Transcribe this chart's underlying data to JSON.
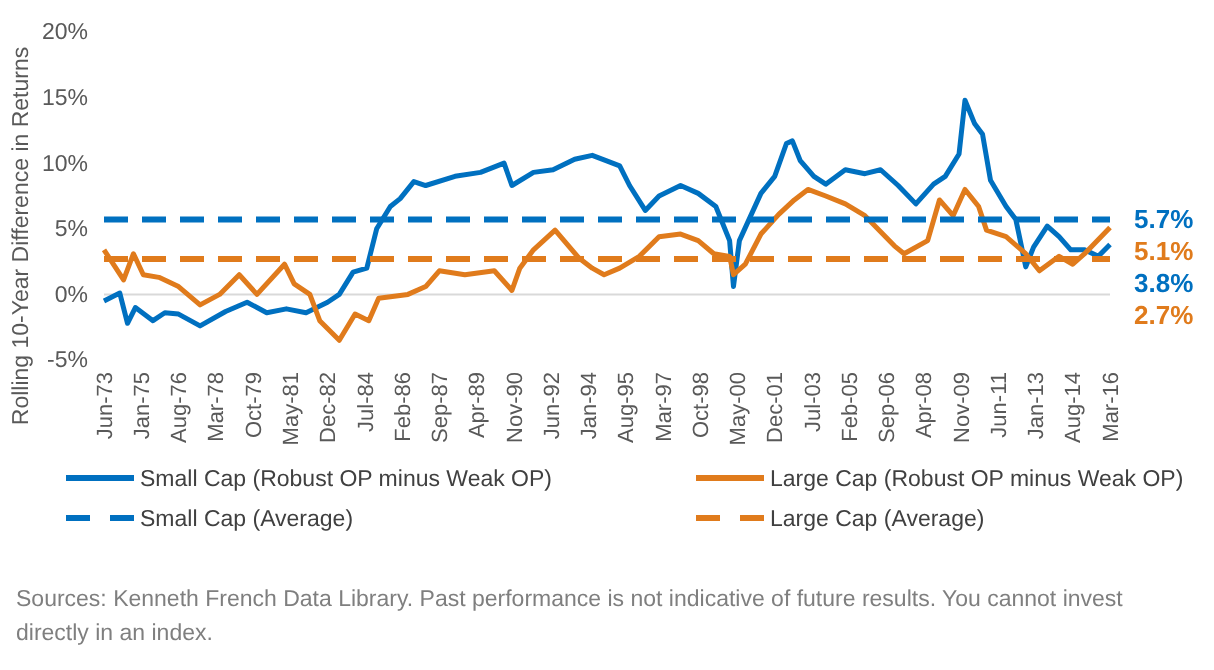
{
  "chart_data": {
    "type": "line",
    "ylabel": "Rolling 10-Year Difference in Returns",
    "xlim": [
      "1973-06",
      "2016-03"
    ],
    "xticks": [
      {
        "value": "1973-06",
        "label": "Jun-73"
      },
      {
        "value": "1975-01",
        "label": "Jan-75"
      },
      {
        "value": "1976-08",
        "label": "Aug-76"
      },
      {
        "value": "1978-03",
        "label": "Mar-78"
      },
      {
        "value": "1979-10",
        "label": "Oct-79"
      },
      {
        "value": "1981-05",
        "label": "May-81"
      },
      {
        "value": "1982-12",
        "label": "Dec-82"
      },
      {
        "value": "1984-07",
        "label": "Jul-84"
      },
      {
        "value": "1986-02",
        "label": "Feb-86"
      },
      {
        "value": "1987-09",
        "label": "Sep-87"
      },
      {
        "value": "1989-04",
        "label": "Apr-89"
      },
      {
        "value": "1990-11",
        "label": "Nov-90"
      },
      {
        "value": "1992-06",
        "label": "Jun-92"
      },
      {
        "value": "1994-01",
        "label": "Jan-94"
      },
      {
        "value": "1995-08",
        "label": "Aug-95"
      },
      {
        "value": "1997-03",
        "label": "Mar-97"
      },
      {
        "value": "1998-10",
        "label": "Oct-98"
      },
      {
        "value": "2000-05",
        "label": "May-00"
      },
      {
        "value": "2001-12",
        "label": "Dec-01"
      },
      {
        "value": "2003-07",
        "label": "Jul-03"
      },
      {
        "value": "2005-02",
        "label": "Feb-05"
      },
      {
        "value": "2006-09",
        "label": "Sep-06"
      },
      {
        "value": "2008-04",
        "label": "Apr-08"
      },
      {
        "value": "2009-11",
        "label": "Nov-09"
      },
      {
        "value": "2011-06",
        "label": "Jun-11"
      },
      {
        "value": "2013-01",
        "label": "Jan-13"
      },
      {
        "value": "2014-08",
        "label": "Aug-14"
      },
      {
        "value": "2016-03",
        "label": "Mar-16"
      }
    ],
    "ylim": [
      -5,
      20
    ],
    "yticks": [
      {
        "value": -5,
        "label": "-5%"
      },
      {
        "value": 0,
        "label": "0%"
      },
      {
        "value": 5,
        "label": "5%"
      },
      {
        "value": 10,
        "label": "10%"
      },
      {
        "value": 15,
        "label": "15%"
      },
      {
        "value": 20,
        "label": "20%"
      }
    ],
    "grid": false,
    "legend": "bottom",
    "ref_lines": [
      {
        "axis": "y",
        "value": 0,
        "color": "#d9d9d9"
      }
    ],
    "marker": "none",
    "series": [
      {
        "name": "Small Cap (Robust OP minus Weak OP)",
        "color": "#0070c0",
        "line_style": "solid",
        "x": [
          "1973-06",
          "1974-02",
          "1974-06",
          "1974-10",
          "1975-07",
          "1976-01",
          "1976-08",
          "1977-07",
          "1978-08",
          "1979-07",
          "1980-05",
          "1981-03",
          "1982-01",
          "1982-12",
          "1983-06",
          "1984-01",
          "1984-08",
          "1985-01",
          "1985-08",
          "1986-01",
          "1986-08",
          "1987-02",
          "1988-05",
          "1989-06",
          "1990-06",
          "1990-10",
          "1991-09",
          "1992-07",
          "1993-06",
          "1994-03",
          "1994-10",
          "1995-05",
          "1995-10",
          "1996-06",
          "1997-01",
          "1997-12",
          "1998-09",
          "1999-06",
          "2000-01",
          "2000-03",
          "2000-06",
          "2001-05",
          "2001-12",
          "2002-06",
          "2002-09",
          "2003-01",
          "2003-08",
          "2004-02",
          "2004-12",
          "2005-10",
          "2006-06",
          "2007-03",
          "2007-12",
          "2008-09",
          "2009-03",
          "2009-10",
          "2010-01",
          "2010-06",
          "2010-10",
          "2011-02",
          "2011-10",
          "2012-03",
          "2012-08",
          "2012-12",
          "2013-07",
          "2014-01",
          "2014-07",
          "2015-02",
          "2015-09",
          "2016-03"
        ],
        "values": [
          -0.5,
          0.1,
          -2.2,
          -1.0,
          -2.0,
          -1.4,
          -1.5,
          -2.4,
          -1.3,
          -0.6,
          -1.4,
          -1.1,
          -1.4,
          -0.6,
          0,
          1.7,
          2.0,
          5.0,
          6.7,
          7.3,
          8.6,
          8.3,
          9.0,
          9.3,
          10.0,
          8.3,
          9.3,
          9.5,
          10.3,
          10.6,
          10.2,
          9.8,
          8.3,
          6.4,
          7.5,
          8.3,
          7.7,
          6.7,
          4.1,
          0.6,
          4.1,
          7.7,
          9.0,
          11.5,
          11.7,
          10.2,
          9.0,
          8.4,
          9.5,
          9.2,
          9.5,
          8.3,
          6.9,
          8.4,
          9.0,
          10.7,
          14.8,
          13.0,
          12.2,
          8.7,
          6.7,
          5.7,
          2.1,
          3.6,
          5.2,
          4.4,
          3.4,
          3.4,
          2.9,
          3.8
        ]
      },
      {
        "name": "Large Cap (Robust OP minus Weak OP)",
        "color": "#e07b1c",
        "line_style": "solid",
        "x": [
          "1973-06",
          "1974-04",
          "1974-09",
          "1975-02",
          "1975-10",
          "1976-08",
          "1977-07",
          "1978-05",
          "1979-03",
          "1979-12",
          "1981-02",
          "1981-07",
          "1982-03",
          "1982-08",
          "1983-06",
          "1984-02",
          "1984-09",
          "1985-02",
          "1986-05",
          "1987-02",
          "1987-09",
          "1988-10",
          "1990-01",
          "1990-10",
          "1991-02",
          "1991-09",
          "1992-08",
          "1993-08",
          "1994-03",
          "1994-09",
          "1995-05",
          "1996-03",
          "1997-01",
          "1997-12",
          "1998-09",
          "1999-05",
          "2000-01",
          "2000-03",
          "2000-09",
          "2001-05",
          "2002-02",
          "2002-10",
          "2003-05",
          "2004-02",
          "2004-12",
          "2005-10",
          "2007-01",
          "2007-06",
          "2008-06",
          "2008-12",
          "2009-07",
          "2010-01",
          "2010-08",
          "2010-12",
          "2011-10",
          "2012-08",
          "2013-03",
          "2014-01",
          "2014-08",
          "2015-02",
          "2016-03"
        ],
        "values": [
          3.4,
          1.1,
          3.1,
          1.5,
          1.3,
          0.6,
          -0.8,
          0,
          1.5,
          0,
          2.3,
          0.8,
          0,
          -2.0,
          -3.5,
          -1.5,
          -2.0,
          -0.3,
          0,
          0.6,
          1.8,
          1.5,
          1.8,
          0.3,
          2.0,
          3.4,
          4.9,
          2.8,
          2.0,
          1.5,
          2.0,
          2.9,
          4.4,
          4.6,
          4.1,
          3.1,
          2.9,
          1.5,
          2.3,
          4.6,
          6.1,
          7.2,
          8.0,
          7.5,
          6.9,
          6.0,
          3.7,
          3.1,
          4.1,
          7.2,
          6.0,
          8.0,
          6.7,
          4.9,
          4.4,
          3.1,
          1.8,
          2.9,
          2.3,
          3.1,
          5.1
        ]
      },
      {
        "name": "Small Cap (Average)",
        "color": "#0070c0",
        "line_style": "dashed",
        "x": [
          "1973-06",
          "2016-03"
        ],
        "values": [
          5.7,
          5.7
        ]
      },
      {
        "name": "Large Cap (Average)",
        "color": "#e07b1c",
        "line_style": "dashed",
        "x": [
          "1973-06",
          "2016-03"
        ],
        "values": [
          2.7,
          2.7
        ]
      }
    ],
    "annotations": [
      {
        "text": "5.7%",
        "x": "2016-03",
        "y": 5.7
      },
      {
        "text": "5.1%",
        "x": "2016-03",
        "y": 5.1
      },
      {
        "text": "3.8%",
        "x": "2016-03",
        "y": 3.8
      },
      {
        "text": "2.7%",
        "x": "2016-03",
        "y": 2.7
      },
      "Sources: Kenneth French Data Library. Past performance is not indicative of future results. You cannot invest directly in an index."
    ]
  }
}
